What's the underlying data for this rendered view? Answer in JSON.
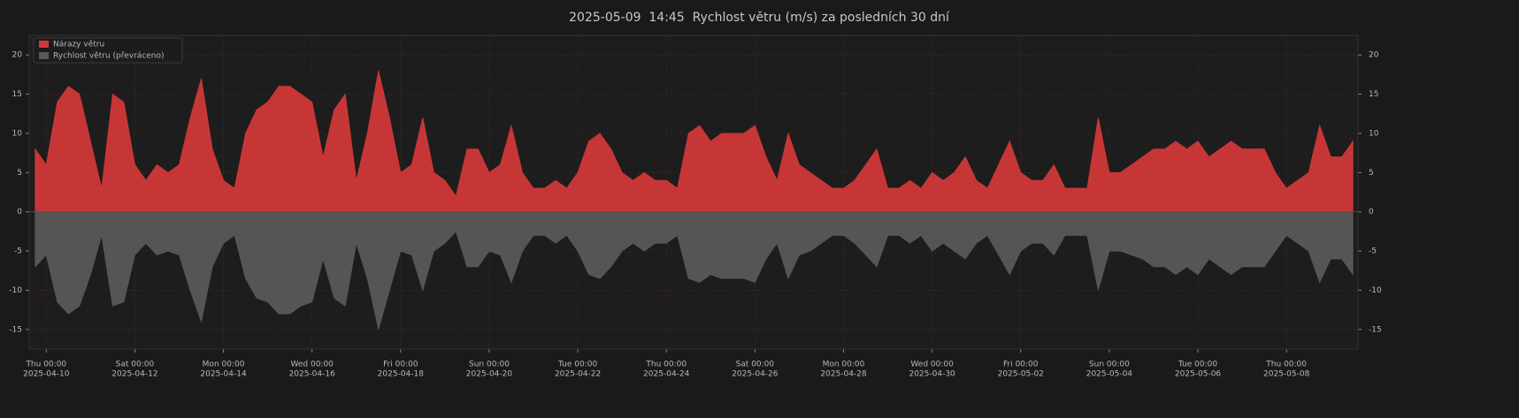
{
  "chart_data": {
    "type": "area",
    "title": "2025-05-09  14:45  Rychlost větru (m/s) za posledních 30 dní",
    "x": [
      "2025-04-09 18:00",
      "2025-04-10 00:00",
      "2025-04-10 06:00",
      "2025-04-10 12:00",
      "2025-04-10 18:00",
      "2025-04-11 00:00",
      "2025-04-11 06:00",
      "2025-04-11 12:00",
      "2025-04-11 18:00",
      "2025-04-12 00:00",
      "2025-04-12 06:00",
      "2025-04-12 12:00",
      "2025-04-12 18:00",
      "2025-04-13 00:00",
      "2025-04-13 06:00",
      "2025-04-13 12:00",
      "2025-04-13 18:00",
      "2025-04-14 00:00",
      "2025-04-14 06:00",
      "2025-04-14 12:00",
      "2025-04-14 18:00",
      "2025-04-15 00:00",
      "2025-04-15 06:00",
      "2025-04-15 12:00",
      "2025-04-15 18:00",
      "2025-04-16 00:00",
      "2025-04-16 06:00",
      "2025-04-16 12:00",
      "2025-04-16 18:00",
      "2025-04-17 00:00",
      "2025-04-17 06:00",
      "2025-04-17 12:00",
      "2025-04-17 18:00",
      "2025-04-18 00:00",
      "2025-04-18 06:00",
      "2025-04-18 12:00",
      "2025-04-18 18:00",
      "2025-04-19 00:00",
      "2025-04-19 06:00",
      "2025-04-19 12:00",
      "2025-04-19 18:00",
      "2025-04-20 00:00",
      "2025-04-20 06:00",
      "2025-04-20 12:00",
      "2025-04-20 18:00",
      "2025-04-21 00:00",
      "2025-04-21 06:00",
      "2025-04-21 12:00",
      "2025-04-21 18:00",
      "2025-04-22 00:00",
      "2025-04-22 06:00",
      "2025-04-22 12:00",
      "2025-04-22 18:00",
      "2025-04-23 00:00",
      "2025-04-23 06:00",
      "2025-04-23 12:00",
      "2025-04-23 18:00",
      "2025-04-24 00:00",
      "2025-04-24 06:00",
      "2025-04-24 12:00",
      "2025-04-24 18:00",
      "2025-04-25 00:00",
      "2025-04-25 06:00",
      "2025-04-25 12:00",
      "2025-04-25 18:00",
      "2025-04-26 00:00",
      "2025-04-26 06:00",
      "2025-04-26 12:00",
      "2025-04-26 18:00",
      "2025-04-27 00:00",
      "2025-04-27 06:00",
      "2025-04-27 12:00",
      "2025-04-27 18:00",
      "2025-04-28 00:00",
      "2025-04-28 06:00",
      "2025-04-28 12:00",
      "2025-04-28 18:00",
      "2025-04-29 00:00",
      "2025-04-29 06:00",
      "2025-04-29 12:00",
      "2025-04-29 18:00",
      "2025-04-30 00:00",
      "2025-04-30 06:00",
      "2025-04-30 12:00",
      "2025-04-30 18:00",
      "2025-05-01 00:00",
      "2025-05-01 06:00",
      "2025-05-01 12:00",
      "2025-05-01 18:00",
      "2025-05-02 00:00",
      "2025-05-02 06:00",
      "2025-05-02 12:00",
      "2025-05-02 18:00",
      "2025-05-03 00:00",
      "2025-05-03 06:00",
      "2025-05-03 12:00",
      "2025-05-03 18:00",
      "2025-05-04 00:00",
      "2025-05-04 06:00",
      "2025-05-04 12:00",
      "2025-05-04 18:00",
      "2025-05-05 00:00",
      "2025-05-05 06:00",
      "2025-05-05 12:00",
      "2025-05-05 18:00",
      "2025-05-06 00:00",
      "2025-05-06 06:00",
      "2025-05-06 12:00",
      "2025-05-06 18:00",
      "2025-05-07 00:00",
      "2025-05-07 06:00",
      "2025-05-07 12:00",
      "2025-05-07 18:00",
      "2025-05-08 00:00",
      "2025-05-08 06:00",
      "2025-05-08 12:00",
      "2025-05-08 18:00",
      "2025-05-09 00:00",
      "2025-05-09 06:00",
      "2025-05-09 12:00"
    ],
    "series": [
      {
        "name": "Nárazy větru",
        "color": "#d13838",
        "values": [
          8,
          6,
          14,
          16,
          15,
          9,
          3,
          15,
          14,
          6,
          4,
          6,
          5,
          6,
          12,
          17,
          8,
          4,
          3,
          10,
          13,
          14,
          16,
          16,
          15,
          14,
          7,
          13,
          15,
          4,
          10,
          18,
          12,
          5,
          6,
          12,
          5,
          4,
          2,
          8,
          8,
          5,
          6,
          11,
          5,
          3,
          3,
          4,
          3,
          5,
          9,
          10,
          8,
          5,
          4,
          5,
          4,
          4,
          3,
          10,
          11,
          9,
          10,
          10,
          10,
          11,
          7,
          4,
          10,
          6,
          5,
          4,
          3,
          3,
          4,
          6,
          8,
          3,
          3,
          4,
          3,
          5,
          4,
          5,
          7,
          4,
          3,
          6,
          9,
          5,
          4,
          4,
          6,
          3,
          3,
          3,
          12,
          5,
          5,
          6,
          7,
          8,
          8,
          9,
          8,
          9,
          7,
          8,
          9,
          8,
          8,
          8,
          5,
          3,
          4,
          5,
          11,
          7,
          7,
          9
        ]
      },
      {
        "name": "Rychlost větru (převráceno)",
        "color": "#595959",
        "values": [
          -7,
          -5.5,
          -11.5,
          -13,
          -12,
          -8,
          -3,
          -12,
          -11.5,
          -5.5,
          -4,
          -5.5,
          -5,
          -5.5,
          -10,
          -14,
          -7,
          -4,
          -3,
          -8.5,
          -11,
          -11.5,
          -13,
          -13,
          -12,
          -11.5,
          -6,
          -11,
          -12,
          -4,
          -8.5,
          -15,
          -10,
          -5,
          -5.5,
          -10,
          -5,
          -4,
          -2.5,
          -7,
          -7,
          -5,
          -5.5,
          -9,
          -5,
          -3,
          -3,
          -4,
          -3,
          -5,
          -8,
          -8.5,
          -7,
          -5,
          -4,
          -5,
          -4,
          -4,
          -3,
          -8.5,
          -9,
          -8,
          -8.5,
          -8.5,
          -8.5,
          -9,
          -6,
          -4,
          -8.5,
          -5.5,
          -5,
          -4,
          -3,
          -3,
          -4,
          -5.5,
          -7,
          -3,
          -3,
          -4,
          -3,
          -5,
          -4,
          -5,
          -6,
          -4,
          -3,
          -5.5,
          -8,
          -5,
          -4,
          -4,
          -5.5,
          -3,
          -3,
          -3,
          -10,
          -5,
          -5,
          -5.5,
          -6,
          -7,
          -7,
          -8,
          -7,
          -8,
          -6,
          -7,
          -8,
          -7,
          -7,
          -7,
          -5,
          -3,
          -4,
          -5,
          -9,
          -6,
          -6,
          -8
        ]
      }
    ],
    "xlim": [
      "2025-04-09 14:45",
      "2025-05-09 14:45"
    ],
    "xticks": [
      {
        "value": "2025-04-10 00:00",
        "label": [
          "Thu 00:00",
          "2025-04-10"
        ]
      },
      {
        "value": "2025-04-12 00:00",
        "label": [
          "Sat 00:00",
          "2025-04-12"
        ]
      },
      {
        "value": "2025-04-14 00:00",
        "label": [
          "Mon 00:00",
          "2025-04-14"
        ]
      },
      {
        "value": "2025-04-16 00:00",
        "label": [
          "Wed 00:00",
          "2025-04-16"
        ]
      },
      {
        "value": "2025-04-18 00:00",
        "label": [
          "Fri 00:00",
          "2025-04-18"
        ]
      },
      {
        "value": "2025-04-20 00:00",
        "label": [
          "Sun 00:00",
          "2025-04-20"
        ]
      },
      {
        "value": "2025-04-22 00:00",
        "label": [
          "Tue 00:00",
          "2025-04-22"
        ]
      },
      {
        "value": "2025-04-24 00:00",
        "label": [
          "Thu 00:00",
          "2025-04-24"
        ]
      },
      {
        "value": "2025-04-26 00:00",
        "label": [
          "Sat 00:00",
          "2025-04-26"
        ]
      },
      {
        "value": "2025-04-28 00:00",
        "label": [
          "Mon 00:00",
          "2025-04-28"
        ]
      },
      {
        "value": "2025-04-30 00:00",
        "label": [
          "Wed 00:00",
          "2025-04-30"
        ]
      },
      {
        "value": "2025-05-02 00:00",
        "label": [
          "Fri 00:00",
          "2025-05-02"
        ]
      },
      {
        "value": "2025-05-04 00:00",
        "label": [
          "Sun 00:00",
          "2025-05-04"
        ]
      },
      {
        "value": "2025-05-06 00:00",
        "label": [
          "Tue 00:00",
          "2025-05-06"
        ]
      },
      {
        "value": "2025-05-08 00:00",
        "label": [
          "Thu 00:00",
          "2025-05-08"
        ]
      }
    ],
    "ylim": [
      -17.5,
      22.5
    ],
    "yticks": [
      -15,
      -10,
      -5,
      0,
      5,
      10,
      15,
      20
    ],
    "grid": true,
    "legend": "upper left"
  }
}
